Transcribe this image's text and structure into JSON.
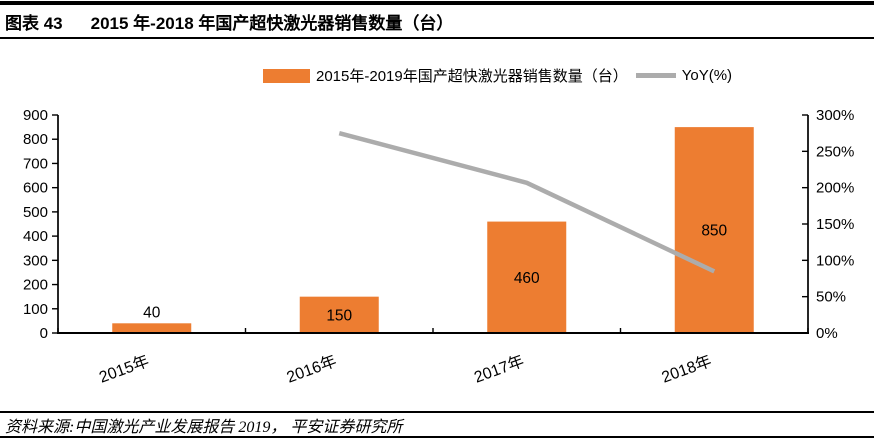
{
  "figure": {
    "label": "图表 43",
    "title": "2015 年-2018 年国产超快激光器销售数量（台）",
    "source": "资料来源:中国激光产业发展报告 2019， 平安证券研究所"
  },
  "legend": {
    "bar_label": "2015年-2019年国产超快激光器销售数量（台）",
    "line_label": "YoY(%)"
  },
  "colors": {
    "bar": "#ED7D31",
    "line": "#ACACAC",
    "axis": "#000000",
    "text": "#000000"
  },
  "chart_data": {
    "type": "bar",
    "title": "2015 年-2018 年国产超快激光器销售数量（台）",
    "categories": [
      "2015年",
      "2016年",
      "2017年",
      "2018年"
    ],
    "series": [
      {
        "name": "2015年-2019年国产超快激光器销售数量（台）",
        "type": "bar",
        "axis": "left",
        "color": "#ED7D31",
        "values": [
          40,
          150,
          460,
          850
        ]
      },
      {
        "name": "YoY(%)",
        "type": "line",
        "axis": "right",
        "color": "#ACACAC",
        "values": [
          null,
          275,
          206.7,
          84.8
        ]
      }
    ],
    "bar_labels": [
      "40",
      "150",
      "460",
      "850"
    ],
    "left_axis": {
      "min": 0,
      "max": 900,
      "step": 100,
      "ticks": [
        "900",
        "800",
        "700",
        "600",
        "500",
        "400",
        "300",
        "200",
        "100",
        "0"
      ]
    },
    "right_axis": {
      "min": 0,
      "max": 300,
      "step": 50,
      "ticks": [
        "300%",
        "250%",
        "200%",
        "150%",
        "100%",
        "50%",
        "0%"
      ]
    },
    "legend_position": "top",
    "grid": false,
    "xlabel": "",
    "ylabel": ""
  }
}
